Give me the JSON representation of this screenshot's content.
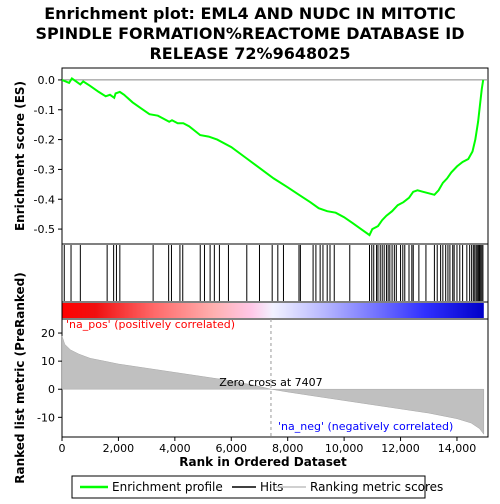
{
  "chart_data": {
    "type": "line",
    "title_lines": [
      "Enrichment plot: EML4 AND NUDC IN MITOTIC",
      "SPINDLE FORMATION%REACTOME DATABASE ID",
      "RELEASE 72%9648025"
    ],
    "es_panel": {
      "ylabel": "Enrichment score (ES)",
      "ylim": [
        -0.55,
        0.04
      ],
      "yticks": [
        "0.0",
        "-0.1",
        "-0.2",
        "-0.3",
        "-0.4",
        "-0.5"
      ],
      "ytick_values": [
        0.0,
        -0.1,
        -0.2,
        -0.3,
        -0.4,
        -0.5
      ],
      "series_name": "Enrichment profile",
      "color": "#00ff00",
      "points": [
        [
          0,
          0.0
        ],
        [
          250,
          -0.01
        ],
        [
          350,
          0.005
        ],
        [
          500,
          -0.005
        ],
        [
          650,
          -0.015
        ],
        [
          750,
          -0.005
        ],
        [
          1000,
          -0.02
        ],
        [
          1300,
          -0.04
        ],
        [
          1550,
          -0.055
        ],
        [
          1700,
          -0.05
        ],
        [
          1850,
          -0.06
        ],
        [
          1900,
          -0.045
        ],
        [
          2050,
          -0.04
        ],
        [
          2200,
          -0.05
        ],
        [
          2500,
          -0.075
        ],
        [
          2800,
          -0.095
        ],
        [
          3100,
          -0.115
        ],
        [
          3400,
          -0.12
        ],
        [
          3600,
          -0.13
        ],
        [
          3800,
          -0.14
        ],
        [
          3900,
          -0.135
        ],
        [
          4100,
          -0.145
        ],
        [
          4300,
          -0.145
        ],
        [
          4500,
          -0.155
        ],
        [
          4700,
          -0.17
        ],
        [
          4900,
          -0.185
        ],
        [
          5200,
          -0.19
        ],
        [
          5500,
          -0.2
        ],
        [
          6000,
          -0.225
        ],
        [
          6500,
          -0.26
        ],
        [
          7000,
          -0.295
        ],
        [
          7500,
          -0.33
        ],
        [
          8000,
          -0.36
        ],
        [
          8400,
          -0.385
        ],
        [
          8800,
          -0.41
        ],
        [
          9100,
          -0.43
        ],
        [
          9400,
          -0.44
        ],
        [
          9700,
          -0.445
        ],
        [
          10000,
          -0.46
        ],
        [
          10300,
          -0.48
        ],
        [
          10600,
          -0.5
        ],
        [
          10900,
          -0.52
        ],
        [
          11000,
          -0.5
        ],
        [
          11200,
          -0.49
        ],
        [
          11350,
          -0.47
        ],
        [
          11500,
          -0.455
        ],
        [
          11700,
          -0.44
        ],
        [
          11900,
          -0.42
        ],
        [
          12100,
          -0.41
        ],
        [
          12300,
          -0.395
        ],
        [
          12450,
          -0.375
        ],
        [
          12600,
          -0.37
        ],
        [
          12800,
          -0.375
        ],
        [
          13000,
          -0.38
        ],
        [
          13200,
          -0.385
        ],
        [
          13350,
          -0.37
        ],
        [
          13500,
          -0.345
        ],
        [
          13650,
          -0.33
        ],
        [
          13800,
          -0.31
        ],
        [
          14000,
          -0.29
        ],
        [
          14200,
          -0.275
        ],
        [
          14400,
          -0.265
        ],
        [
          14550,
          -0.24
        ],
        [
          14650,
          -0.2
        ],
        [
          14750,
          -0.14
        ],
        [
          14820,
          -0.08
        ],
        [
          14880,
          -0.03
        ],
        [
          14930,
          0.0
        ]
      ]
    },
    "hits_panel": {
      "series_name": "Hits",
      "hit_positions": [
        80,
        320,
        650,
        1600,
        1830,
        1930,
        2050,
        3230,
        3780,
        3880,
        4180,
        4280,
        4900,
        5050,
        5250,
        5400,
        5580,
        5900,
        6550,
        7000,
        7450,
        7650,
        7850,
        8400,
        8450,
        8900,
        9000,
        9150,
        9250,
        9400,
        9500,
        9650,
        10200,
        10900,
        10980,
        11050,
        11150,
        11200,
        11280,
        11350,
        11420,
        11500,
        11560,
        11620,
        11700,
        11780,
        11850,
        12000,
        12080,
        12150,
        12300,
        12400,
        12450,
        12650,
        12900,
        13200,
        13300,
        13420,
        13500,
        13600,
        13680,
        13750,
        13850,
        13900,
        14000,
        14100,
        14200,
        14350,
        14450,
        14520,
        14580,
        14630,
        14680,
        14720,
        14760,
        14800,
        14840,
        14880,
        14920
      ]
    },
    "rank_panel": {
      "ylabel": "Ranked list metric (PreRanked)",
      "ylim": [
        -17,
        25
      ],
      "yticks": [
        "20",
        "10",
        "0",
        "-10"
      ],
      "ytick_values": [
        20,
        10,
        0,
        -10
      ],
      "series_name": "Ranking metric scores",
      "zero_cross_text": "Zero cross at 7407",
      "zero_cross": 7407,
      "pos_label": "'na_pos' (positively correlated)",
      "neg_label": "'na_neg' (negatively correlated)",
      "metric_points": [
        [
          0,
          19
        ],
        [
          100,
          16
        ],
        [
          300,
          14
        ],
        [
          600,
          12.5
        ],
        [
          1000,
          11
        ],
        [
          1500,
          10
        ],
        [
          2000,
          9
        ],
        [
          3000,
          7.5
        ],
        [
          4000,
          6
        ],
        [
          5000,
          4.5
        ],
        [
          6000,
          3
        ],
        [
          7000,
          1
        ],
        [
          7407,
          0
        ],
        [
          8000,
          -1
        ],
        [
          9000,
          -2.5
        ],
        [
          10000,
          -4
        ],
        [
          11000,
          -5.5
        ],
        [
          12000,
          -7
        ],
        [
          13000,
          -8.5
        ],
        [
          14000,
          -10.5
        ],
        [
          14500,
          -12
        ],
        [
          14800,
          -14
        ],
        [
          14950,
          -16
        ]
      ]
    },
    "x_axis": {
      "xlabel": "Rank in Ordered Dataset",
      "xlim": [
        0,
        15100
      ],
      "xticks": [
        "0",
        "2,000",
        "4,000",
        "6,000",
        "8,000",
        "10,000",
        "12,000",
        "14,000"
      ],
      "xtick_values": [
        0,
        2000,
        4000,
        6000,
        8000,
        10000,
        12000,
        14000
      ],
      "n_genes": 14950
    },
    "legend": {
      "placement": "bottom",
      "items": [
        "Enrichment profile",
        "Hits",
        "Ranking metric scores"
      ]
    },
    "colors": {
      "profile": "#00ff00",
      "pos_band": "#ff0000",
      "neg_band": "#0000ff",
      "metric_fill": "#c0c0c0",
      "pos_label": "#ff0000",
      "neg_label": "#0000ff"
    }
  }
}
